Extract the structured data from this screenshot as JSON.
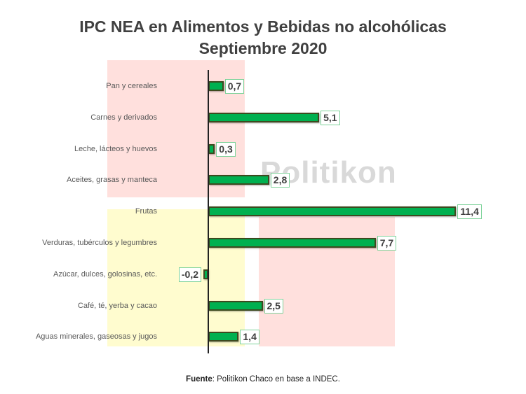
{
  "title": {
    "line1": "IPC NEA en Alimentos y Bebidas no alcohólicas",
    "line2": "Septiembre 2020"
  },
  "watermark": "Politikon",
  "source": {
    "prefix": "Fuente",
    "text": ": Politikon Chaco en base a INDEC."
  },
  "colors": {
    "bar_fill": "#00b050",
    "bar_border": "#3d4a1f",
    "bg_pink": "#ffe0dd",
    "bg_yellow": "#fffccf",
    "label_border": "#7ed39a"
  },
  "chart_data": {
    "type": "bar",
    "orientation": "horizontal",
    "title": "IPC NEA en Alimentos y Bebidas no alcohólicas Septiembre 2020",
    "xlabel": "",
    "ylabel": "",
    "grid": false,
    "legend": "none",
    "categories": [
      "Pan y cereales",
      "Carnes y derivados",
      "Leche, lácteos y huevos",
      "Aceites, grasas y manteca",
      "Frutas",
      "Verduras, tubérculos y legumbres",
      "Azúcar, dulces, golosinas, etc.",
      "Café, té, yerba y cacao",
      "Aguas minerales, gaseosas y jugos"
    ],
    "values": [
      0.7,
      5.1,
      0.3,
      2.8,
      11.4,
      7.7,
      -0.2,
      2.5,
      1.4
    ],
    "value_labels": [
      "0,7",
      "5,1",
      "0,3",
      "2,8",
      "11,4",
      "7,7",
      "-0,2",
      "2,5",
      "1,4"
    ],
    "source": "Fuente: Politikon Chaco en base a INDEC."
  }
}
